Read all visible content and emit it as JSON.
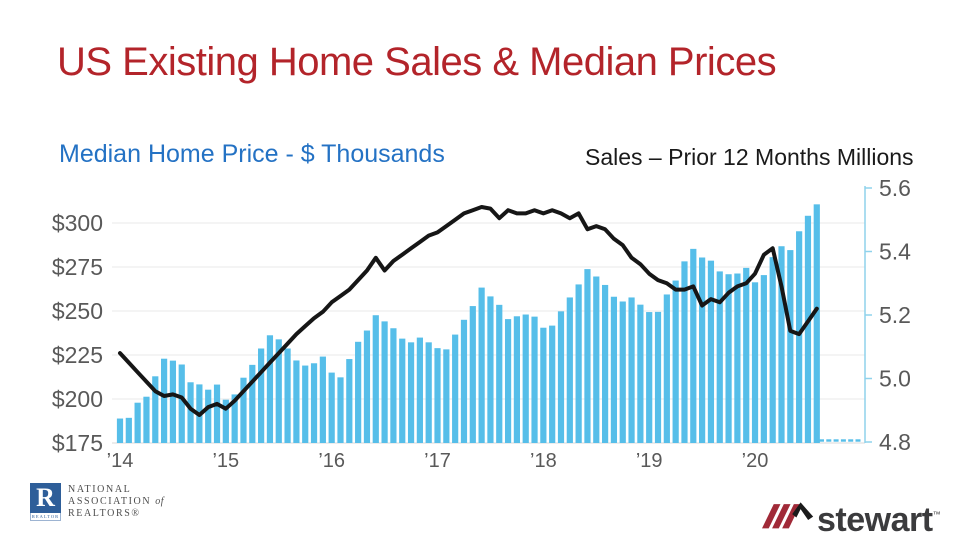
{
  "title": "US Existing Home Sales & Median Prices",
  "subtitle_left": "Median Home Price - $ Thousands",
  "subtitle_right": "Sales – Prior 12 Months Millions",
  "colors": {
    "title_red": "#B3242A",
    "subtitle_blue": "#2472C4",
    "sales_label_black": "#1A1A1A",
    "bar_blue": "#56BEE9",
    "line_black": "#161616",
    "grid_gray": "#E8E8E8",
    "baseline_gray": "#D9D9D9",
    "axis_text_gray": "#595959",
    "right_axis_blue": "#8FD2EC",
    "nar_blue": "#2E5E99",
    "stewart_red": "#A12A38",
    "stewart_charcoal": "#3B3B3D"
  },
  "footer": {
    "nar": {
      "box_letter": "R",
      "band": "REALTOR",
      "line1": "NATIONAL",
      "line2a": "ASSOCIATION",
      "line2b": "of",
      "line3": "REALTORS®"
    },
    "stewart": {
      "wordmark": "stewart",
      "tm": "™"
    }
  },
  "chart_data": {
    "type": "bar+line",
    "frequency": "monthly",
    "start": "2014-01",
    "end": "2020-08",
    "grid": "horizontal",
    "x_tick_labels": [
      "’14",
      "’15",
      "’16",
      "’17",
      "’18",
      "’19",
      "’20"
    ],
    "x_tick_month_index": [
      0,
      12,
      24,
      36,
      48,
      60,
      72
    ],
    "left_axis": {
      "title": "Median Home Price - $ Thousands",
      "tick_labels": [
        "$175",
        "$200",
        "$225",
        "$250",
        "$275",
        "$300"
      ],
      "tick_values": [
        175,
        200,
        225,
        250,
        275,
        300
      ],
      "ylim": [
        175,
        320
      ]
    },
    "right_axis": {
      "title": "Sales – Prior 12 Months Millions",
      "tick_labels": [
        "4.8",
        "5.0",
        "5.2",
        "5.4",
        "5.6"
      ],
      "tick_values": [
        4.8,
        5.0,
        5.2,
        5.4,
        5.6
      ],
      "ylim": [
        4.8,
        5.6
      ]
    },
    "pending_months_dashes": 6,
    "series": [
      {
        "name": "Median Home Price ($ thousands)",
        "type": "bar",
        "axis": "left",
        "values": [
          188.9,
          189.3,
          197.9,
          201.3,
          212.9,
          222.9,
          221.8,
          219.6,
          209.5,
          208.3,
          205.3,
          208.2,
          199.6,
          202.6,
          212.1,
          219.4,
          228.7,
          236.2,
          233.9,
          228.7,
          221.9,
          219.0,
          220.3,
          224.1,
          215.0,
          212.3,
          222.7,
          232.5,
          238.9,
          247.6,
          244.1,
          240.2,
          234.3,
          232.2,
          234.9,
          232.2,
          228.9,
          228.2,
          236.6,
          245.0,
          252.8,
          263.3,
          258.3,
          253.5,
          245.4,
          247.0,
          248.0,
          246.8,
          240.5,
          241.7,
          249.8,
          257.7,
          265.1,
          273.8,
          269.6,
          264.8,
          258.1,
          255.4,
          257.7,
          253.6,
          249.4,
          249.5,
          259.4,
          267.3,
          278.2,
          285.3,
          280.4,
          278.6,
          272.5,
          270.9,
          271.3,
          274.5,
          266.3,
          270.4,
          280.6,
          286.8,
          284.6,
          295.3,
          304.1,
          310.6
        ]
      },
      {
        "name": "Sales – Prior 12 Months (millions)",
        "type": "line",
        "axis": "right",
        "values": [
          5.08,
          5.05,
          5.02,
          4.99,
          4.96,
          4.945,
          4.95,
          4.94,
          4.905,
          4.885,
          4.91,
          4.92,
          4.905,
          4.93,
          4.96,
          4.99,
          5.02,
          5.05,
          5.08,
          5.11,
          5.14,
          5.165,
          5.19,
          5.21,
          5.24,
          5.26,
          5.28,
          5.31,
          5.34,
          5.38,
          5.34,
          5.37,
          5.39,
          5.41,
          5.43,
          5.45,
          5.46,
          5.48,
          5.5,
          5.52,
          5.53,
          5.54,
          5.535,
          5.505,
          5.53,
          5.52,
          5.52,
          5.53,
          5.52,
          5.53,
          5.52,
          5.505,
          5.52,
          5.47,
          5.48,
          5.47,
          5.44,
          5.42,
          5.38,
          5.36,
          5.33,
          5.31,
          5.3,
          5.28,
          5.28,
          5.29,
          5.23,
          5.25,
          5.24,
          5.27,
          5.29,
          5.3,
          5.33,
          5.39,
          5.41,
          5.29,
          5.15,
          5.14,
          5.18,
          5.22
        ]
      }
    ]
  }
}
